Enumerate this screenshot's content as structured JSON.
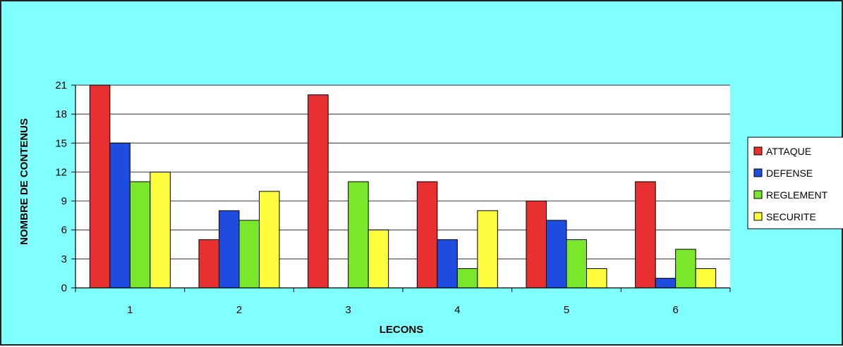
{
  "chart_data": {
    "type": "bar",
    "title": "",
    "xlabel": "LECONS",
    "ylabel": "NOMBRE DE CONTENUS",
    "categories": [
      "1",
      "2",
      "3",
      "4",
      "5",
      "6"
    ],
    "ylim": [
      0,
      21
    ],
    "yticks": [
      0,
      3,
      6,
      9,
      12,
      15,
      18,
      21
    ],
    "grid": true,
    "legend_position": "right",
    "series": [
      {
        "name": "ATTAQUE",
        "color": "#e83030",
        "values": [
          21,
          5,
          20,
          11,
          9,
          11
        ]
      },
      {
        "name": "DEFENSE",
        "color": "#1e4be0",
        "values": [
          15,
          8,
          0,
          5,
          7,
          1
        ]
      },
      {
        "name": "REGLEMENT",
        "color": "#7ae82a",
        "values": [
          11,
          7,
          11,
          2,
          5,
          4
        ]
      },
      {
        "name": "SECURITE",
        "color": "#fcfc3c",
        "values": [
          12,
          10,
          6,
          8,
          2,
          2
        ]
      }
    ],
    "colors": {
      "background": "#80ffff",
      "plot_area": "#ffffff",
      "gridline": "#555555"
    }
  }
}
